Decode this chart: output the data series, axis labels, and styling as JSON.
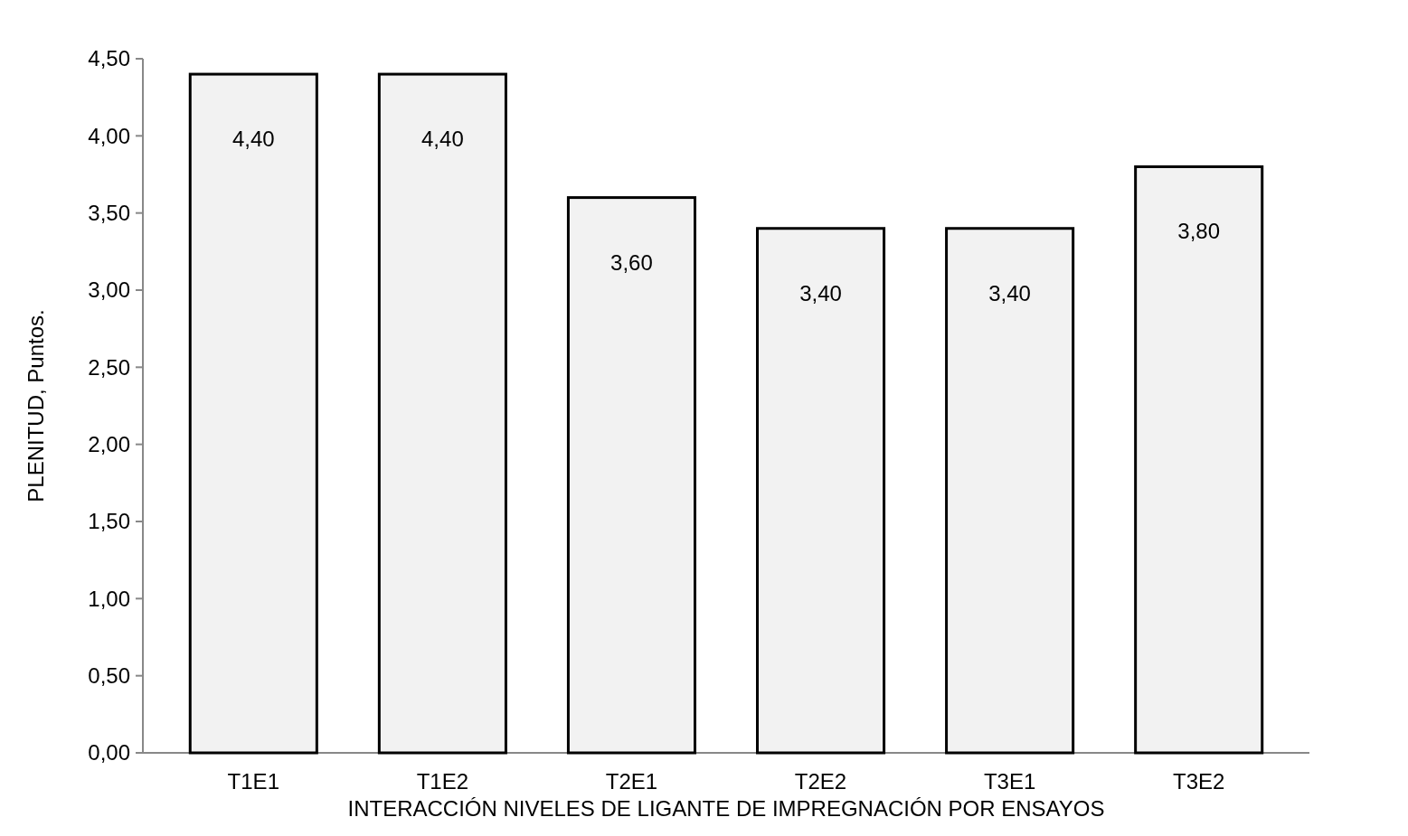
{
  "chart_data": {
    "type": "bar",
    "xlabel": "INTERACCIÓN NIVELES DE LIGANTE DE IMPREGNACIÓN POR ENSAYOS",
    "ylabel": "PLENITUD, Puntos.",
    "categories": [
      "T1E1",
      "T1E2",
      "T2E1",
      "T2E2",
      "T3E1",
      "T3E2"
    ],
    "values": [
      4.4,
      4.4,
      3.6,
      3.4,
      3.4,
      3.8
    ],
    "value_labels": [
      "4,40",
      "4,40",
      "3,60",
      "3,40",
      "3,40",
      "3,80"
    ],
    "color": "#f2f2f2",
    "ylim": [
      0,
      4.5
    ],
    "yticks": [
      {
        "value": 0,
        "label": "0,00"
      },
      {
        "value": 0.5,
        "label": "0,50"
      },
      {
        "value": 1,
        "label": "1,00"
      },
      {
        "value": 1.5,
        "label": "1,50"
      },
      {
        "value": 2,
        "label": "2,00"
      },
      {
        "value": 2.5,
        "label": "2,50"
      },
      {
        "value": 3,
        "label": "3,00"
      },
      {
        "value": 3.5,
        "label": "3,50"
      },
      {
        "value": 4,
        "label": "4,00"
      },
      {
        "value": 4.5,
        "label": "4,50"
      }
    ],
    "grid": false
  }
}
